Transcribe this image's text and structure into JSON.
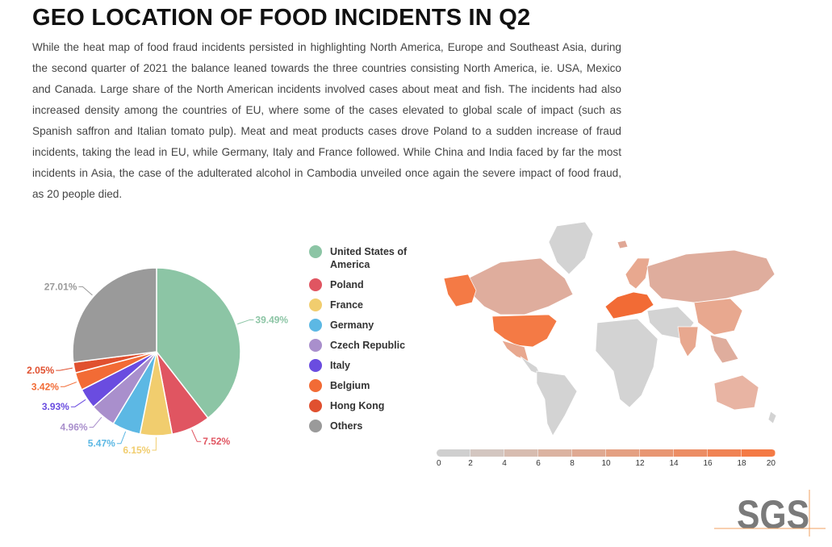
{
  "title": "GEO LOCATION OF FOOD INCIDENTS IN Q2",
  "description": "While the heat map of food fraud incidents persisted in highlighting North America, Europe and Southeast Asia, during the second quarter of 2021 the balance leaned towards the three countries consisting North America, ie. USA, Mexico and Canada. Large share of the North American incidents involved cases about meat and fish. The incidents had also increased density among the countries of EU, where some of the cases elevated to global scale of impact (such as Spanish saffron and Italian tomato pulp). Meat and meat products cases drove Poland to a sudden increase of fraud incidents, taking the lead in EU, while Germany, Italy and France followed. While China and India faced by far the most incidents in Asia, the case of the adulterated alcohol in Cambodia unveiled once again the severe impact of food fraud, as 20 people died.",
  "chart_data": [
    {
      "type": "pie",
      "categories": [
        "United States of America",
        "Poland",
        "France",
        "Germany",
        "Czech Republic",
        "Italy",
        "Belgium",
        "Hong Kong",
        "Others"
      ],
      "values": [
        39.49,
        7.52,
        6.15,
        5.47,
        4.96,
        3.93,
        3.42,
        2.05,
        27.01
      ],
      "labels": [
        "39.49%",
        "7.52%",
        "6.15%",
        "5.47%",
        "4.96%",
        "3.93%",
        "3.42%",
        "2.05%",
        "27.01%"
      ],
      "colors": [
        "#8cc5a5",
        "#e05561",
        "#f1cd6e",
        "#5cb8e4",
        "#a98fcc",
        "#6a4ce0",
        "#f26b35",
        "#e0502f",
        "#9a9a9a"
      ],
      "legend": "right"
    },
    {
      "type": "heatmap",
      "subtype": "choropleth world map",
      "scale_ticks": [
        "0",
        "2",
        "4",
        "6",
        "8",
        "10",
        "12",
        "14",
        "16",
        "18",
        "20"
      ],
      "scale_range": [
        0,
        20
      ],
      "scale_colors": [
        "#cfcfcf",
        "#f47a45"
      ]
    }
  ],
  "logo": "SGS"
}
